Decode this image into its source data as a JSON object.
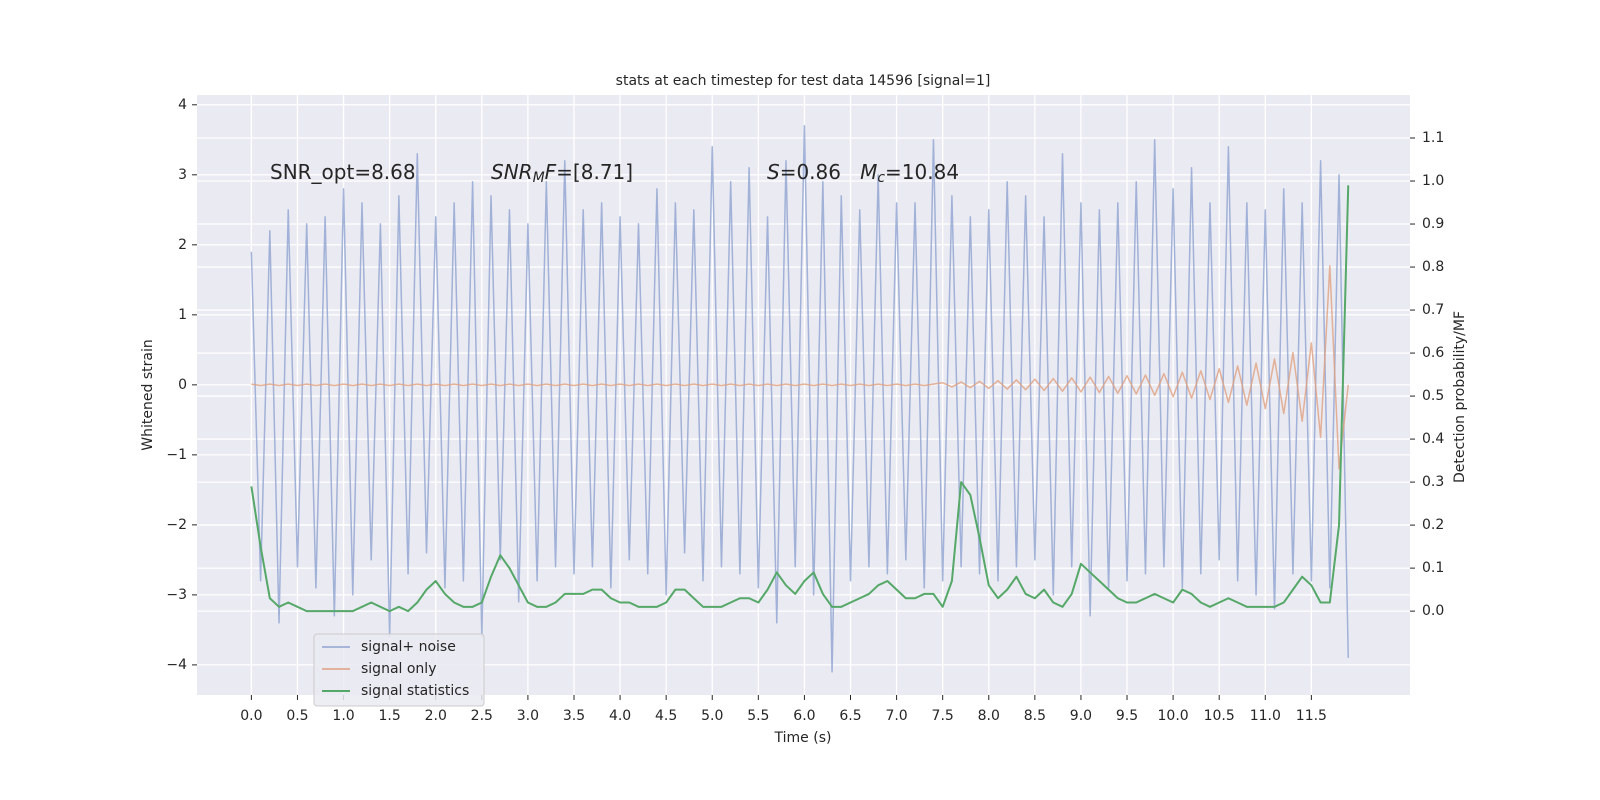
{
  "chart_data": {
    "type": "line",
    "title": "stats at each timestep for test data 14596 [signal=1]",
    "xlabel": "Time (s)",
    "ylabel": "Whitened strain",
    "y2label": "Detection probability/MF",
    "grid": true,
    "legend": "lower left",
    "xlim": [
      -0.59,
      12.57
    ],
    "ylim": [
      -4.43,
      4.14
    ],
    "y2lim": [
      -0.195,
      1.2
    ],
    "xticks": [
      {
        "value": 0,
        "label": "0.0"
      },
      0.5,
      {
        "value": 1,
        "label": "1.0"
      },
      1.5,
      {
        "value": 2,
        "label": "2.0"
      },
      2.5,
      {
        "value": 3,
        "label": "3.0"
      },
      3.5,
      {
        "value": 4,
        "label": "4.0"
      },
      4.5,
      {
        "value": 5,
        "label": "5.0"
      },
      5.5,
      {
        "value": 6,
        "label": "6.0"
      },
      6.5,
      {
        "value": 7,
        "label": "7.0"
      },
      7.5,
      {
        "value": 8,
        "label": "8.0"
      },
      8.5,
      {
        "value": 9,
        "label": "9.0"
      },
      9.5,
      {
        "value": 10,
        "label": "10.0"
      },
      10.5,
      {
        "value": 11,
        "label": "11.0"
      },
      11.5
    ],
    "yticks": [
      {
        "value": -4,
        "label": "−4"
      },
      {
        "value": -3,
        "label": "−3"
      },
      {
        "value": -2,
        "label": "−2"
      },
      {
        "value": -1,
        "label": "−1"
      },
      0,
      1,
      2,
      3,
      4
    ],
    "y2ticks": [
      {
        "value": 0,
        "label": "0.0"
      },
      0.1,
      0.2,
      0.3,
      0.4,
      0.5,
      0.6,
      0.7,
      0.8,
      0.9,
      {
        "value": 1,
        "label": "1.0"
      },
      1.1
    ],
    "annotations": [
      {
        "parts": [
          {
            "text": "SNR_opt=8.68"
          }
        ]
      },
      {
        "parts": [
          {
            "text": "SNR",
            "italic": true
          },
          {
            "text": "M",
            "italic": true,
            "sub": true
          },
          {
            "text": "F",
            "italic": true
          },
          {
            "text": "=[8.71]"
          }
        ]
      },
      {
        "parts": [
          {
            "text": "S",
            "italic": true
          },
          {
            "text": "=0.86   "
          },
          {
            "text": "M",
            "italic": true
          },
          {
            "text": "c",
            "italic": true,
            "sub": true
          },
          {
            "text": "=10.84"
          }
        ]
      }
    ],
    "x": [
      0,
      0.1,
      0.2,
      0.3,
      0.4,
      0.5,
      0.6,
      0.7,
      0.8,
      0.9,
      1,
      1.1,
      1.2,
      1.3,
      1.4,
      1.5,
      1.6,
      1.7,
      1.8,
      1.9,
      2,
      2.1,
      2.2,
      2.3,
      2.4,
      2.5,
      2.6,
      2.7,
      2.8,
      2.9,
      3,
      3.1,
      3.2,
      3.3,
      3.4,
      3.5,
      3.6,
      3.7,
      3.8,
      3.9,
      4,
      4.1,
      4.2,
      4.3,
      4.4,
      4.5,
      4.6,
      4.7,
      4.8,
      4.9,
      5,
      5.1,
      5.2,
      5.3,
      5.4,
      5.5,
      5.6,
      5.7,
      5.8,
      5.9,
      6,
      6.1,
      6.2,
      6.3,
      6.4,
      6.5,
      6.6,
      6.7,
      6.8,
      6.9,
      7,
      7.1,
      7.2,
      7.3,
      7.4,
      7.5,
      7.6,
      7.7,
      7.8,
      7.9,
      8,
      8.1,
      8.2,
      8.3,
      8.4,
      8.5,
      8.6,
      8.7,
      8.8,
      8.9,
      9,
      9.1,
      9.2,
      9.3,
      9.4,
      9.5,
      9.6,
      9.7,
      9.8,
      9.9,
      10,
      10.1,
      10.2,
      10.3,
      10.4,
      10.5,
      10.6,
      10.7,
      10.8,
      10.9,
      11,
      11.1,
      11.2,
      11.3,
      11.4,
      11.5,
      11.6,
      11.7,
      11.8,
      11.9
    ],
    "series": [
      {
        "name": "signal+ noise",
        "color": "#8fa3cf",
        "values": [
          1.9,
          -2.8,
          2.2,
          -3.4,
          2.5,
          -2.6,
          2.3,
          -2.9,
          2.4,
          -3.3,
          2.8,
          -3.0,
          2.6,
          -2.5,
          2.3,
          -3.6,
          2.7,
          -2.7,
          3.3,
          -2.4,
          2.4,
          -2.9,
          2.6,
          -2.8,
          2.9,
          -3.6,
          2.7,
          -2.5,
          2.5,
          -3.1,
          2.3,
          -2.8,
          2.9,
          -2.6,
          3.2,
          -2.7,
          2.5,
          -2.6,
          2.6,
          -2.9,
          2.4,
          -2.5,
          2.3,
          -2.7,
          2.8,
          -3.0,
          2.6,
          -2.4,
          2.5,
          -2.8,
          3.4,
          -2.6,
          2.9,
          -2.7,
          3.1,
          -2.9,
          2.4,
          -3.4,
          3.2,
          -2.6,
          3.7,
          -3.0,
          2.9,
          -4.1,
          2.7,
          -2.8,
          2.5,
          -2.6,
          3.0,
          -2.7,
          2.6,
          -2.5,
          2.6,
          -2.9,
          3.5,
          -2.8,
          2.7,
          -2.6,
          2.4,
          -2.7,
          2.5,
          -2.8,
          2.9,
          -2.6,
          2.7,
          -2.5,
          2.4,
          -3.0,
          3.3,
          -2.6,
          2.6,
          -3.3,
          2.5,
          -2.9,
          2.6,
          -2.8,
          2.9,
          -2.7,
          3.5,
          -2.6,
          2.8,
          -2.9,
          3.1,
          -2.7,
          2.6,
          -2.5,
          3.4,
          -2.8,
          2.6,
          -3.0,
          2.5,
          -3.2,
          2.8,
          -2.7,
          2.6,
          -2.8,
          3.2,
          -2.9,
          3.0,
          -3.9
        ]
      },
      {
        "name": "signal only",
        "color": "#e0a080",
        "values": [
          0.01,
          -0.01,
          0.01,
          -0.01,
          0.01,
          -0.01,
          0.01,
          -0.01,
          0.01,
          -0.01,
          0.01,
          -0.01,
          0.01,
          -0.01,
          0.01,
          -0.01,
          0.01,
          -0.01,
          0.01,
          -0.01,
          0.01,
          -0.01,
          0.01,
          -0.01,
          0.01,
          -0.01,
          0.01,
          -0.01,
          0.01,
          -0.01,
          0.01,
          -0.01,
          0.01,
          -0.01,
          0.01,
          -0.01,
          0.01,
          -0.01,
          0.01,
          -0.01,
          0.01,
          -0.01,
          0.01,
          -0.01,
          0.01,
          -0.01,
          0.01,
          -0.01,
          0.01,
          -0.01,
          0.01,
          -0.01,
          0.01,
          -0.01,
          0.01,
          -0.01,
          0.01,
          -0.01,
          0.01,
          -0.01,
          0.01,
          -0.01,
          0.01,
          -0.01,
          0.01,
          -0.01,
          0.01,
          -0.01,
          0.01,
          -0.01,
          0.01,
          -0.01,
          0.01,
          -0.01,
          0.01,
          0.03,
          -0.03,
          0.04,
          -0.04,
          0.05,
          -0.05,
          0.06,
          -0.06,
          0.07,
          -0.07,
          0.08,
          -0.08,
          0.09,
          -0.09,
          0.1,
          -0.1,
          0.11,
          -0.11,
          0.12,
          -0.12,
          0.13,
          -0.13,
          0.14,
          -0.15,
          0.16,
          -0.17,
          0.18,
          -0.19,
          0.2,
          -0.21,
          0.23,
          -0.25,
          0.27,
          -0.29,
          0.31,
          -0.34,
          0.37,
          -0.41,
          0.46,
          -0.52,
          0.6,
          -0.75,
          1.7,
          -1.2,
          0
        ]
      },
      {
        "name": "signal statistics",
        "color": "#55a868",
        "axis": "y2",
        "values": [
          0.29,
          0.15,
          0.03,
          0.01,
          0.02,
          0.01,
          0,
          0,
          0,
          0,
          0,
          0,
          0.01,
          0.02,
          0.01,
          0,
          0.01,
          0,
          0.02,
          0.05,
          0.07,
          0.04,
          0.02,
          0.01,
          0.01,
          0.02,
          0.08,
          0.13,
          0.1,
          0.06,
          0.02,
          0.01,
          0.01,
          0.02,
          0.04,
          0.04,
          0.04,
          0.05,
          0.05,
          0.03,
          0.02,
          0.02,
          0.01,
          0.01,
          0.01,
          0.02,
          0.05,
          0.05,
          0.03,
          0.01,
          0.01,
          0.01,
          0.02,
          0.03,
          0.03,
          0.02,
          0.05,
          0.09,
          0.06,
          0.04,
          0.07,
          0.09,
          0.04,
          0.01,
          0.01,
          0.02,
          0.03,
          0.04,
          0.06,
          0.07,
          0.05,
          0.03,
          0.03,
          0.04,
          0.04,
          0.01,
          0.07,
          0.3,
          0.27,
          0.17,
          0.06,
          0.03,
          0.05,
          0.08,
          0.04,
          0.03,
          0.05,
          0.02,
          0.01,
          0.04,
          0.11,
          0.09,
          0.07,
          0.05,
          0.03,
          0.02,
          0.02,
          0.03,
          0.04,
          0.03,
          0.02,
          0.05,
          0.04,
          0.02,
          0.01,
          0.02,
          0.03,
          0.02,
          0.01,
          0.01,
          0.01,
          0.01,
          0.02,
          0.05,
          0.08,
          0.06,
          0.02,
          0.02,
          0.2,
          0.99
        ]
      }
    ]
  }
}
